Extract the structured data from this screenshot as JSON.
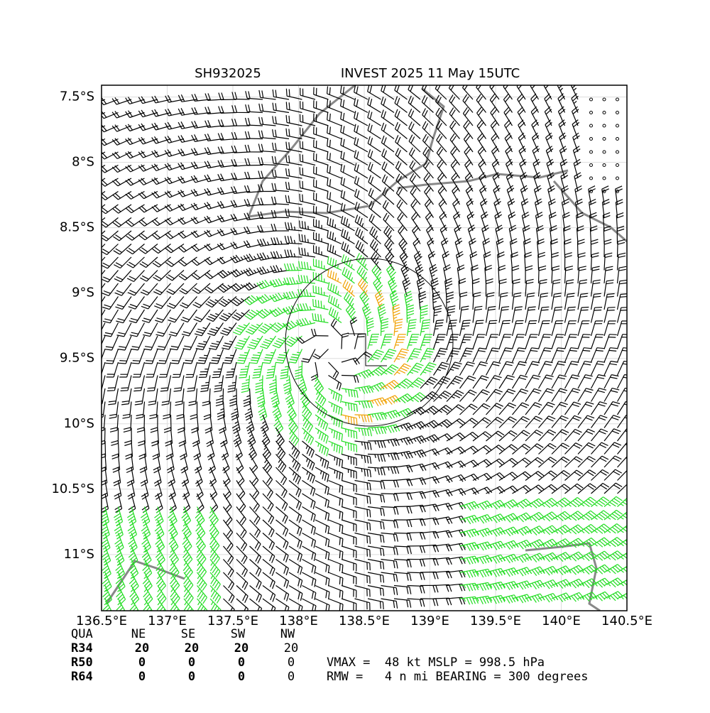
{
  "map": {
    "title_left": "SH932025",
    "title_right": "INVEST 2025 11 May 15UTC",
    "xlim": [
      136.5,
      140.5
    ],
    "ylim": [
      -11.43,
      -7.41
    ],
    "xticks": [
      {
        "value": 136.5,
        "label": "136.5°E"
      },
      {
        "value": 137,
        "label": "137°E"
      },
      {
        "value": 137.5,
        "label": "137.5°E"
      },
      {
        "value": 138,
        "label": "138°E"
      },
      {
        "value": 138.5,
        "label": "138.5°E"
      },
      {
        "value": 139,
        "label": "139°E"
      },
      {
        "value": 139.5,
        "label": "139.5°E"
      },
      {
        "value": 140,
        "label": "140°E"
      },
      {
        "value": 140.5,
        "label": "140.5°E"
      }
    ],
    "yticks": [
      {
        "value": -7.5,
        "label": "7.5°S"
      },
      {
        "value": -8,
        "label": "8°S"
      },
      {
        "value": -8.5,
        "label": "8.5°S"
      },
      {
        "value": -9,
        "label": "9°S"
      },
      {
        "value": -9.5,
        "label": "9.5°S"
      },
      {
        "value": -10,
        "label": "10°S"
      },
      {
        "value": -10.5,
        "label": "10.5°S"
      },
      {
        "value": -11,
        "label": "11°S"
      }
    ]
  },
  "table": {
    "header": [
      "QUA",
      "NE",
      "SE",
      "SW",
      "NW"
    ],
    "rows": [
      [
        "R34",
        20,
        20,
        20,
        20
      ],
      [
        "R50",
        0,
        0,
        0,
        0
      ],
      [
        "R64",
        0,
        0,
        0,
        0
      ]
    ]
  },
  "stats": {
    "line1": "VMAX =  48 kt MSLP = 998.5 hPa",
    "line2": "RMW =   4 n mi BEARING = 300 degrees"
  }
}
